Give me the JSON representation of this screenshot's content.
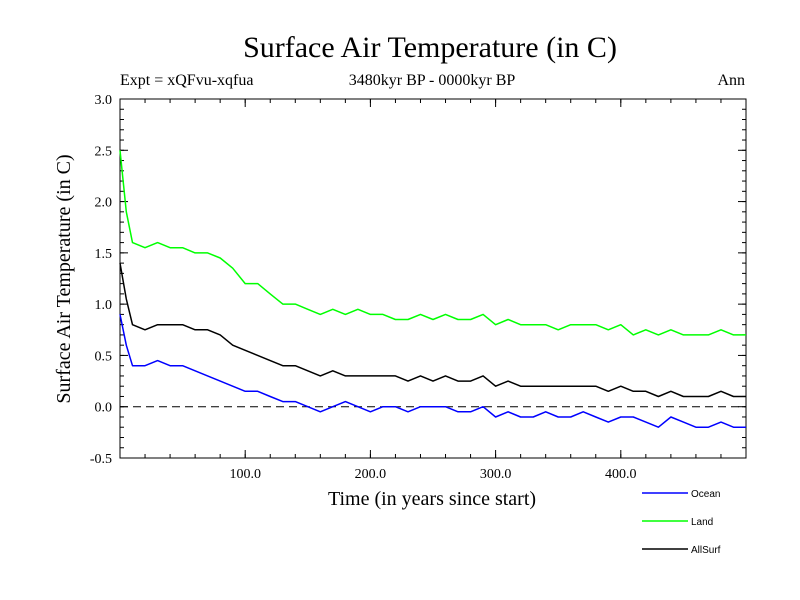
{
  "chart_data": {
    "type": "line",
    "title": "Surface Air Temperature (in C)",
    "subtitle": "3480kyr BP - 0000kyr BP",
    "left_note": "Expt = xQFvu-xqfua",
    "right_note": "Ann",
    "xlabel": "Time (in years since start)",
    "ylabel": "Surface Air Temperature (in C)",
    "xlim": [
      0,
      500
    ],
    "ylim": [
      -0.5,
      3.0
    ],
    "x_ticks": [
      100,
      200,
      300,
      400
    ],
    "x_tick_labels": [
      "100.0",
      "200.0",
      "300.0",
      "400.0"
    ],
    "y_ticks": [
      -0.5,
      0.0,
      0.5,
      1.0,
      1.5,
      2.0,
      2.5,
      3.0
    ],
    "y_tick_labels": [
      "-0.5",
      "0.0",
      "0.5",
      "1.0",
      "1.5",
      "2.0",
      "2.5",
      "3.0"
    ],
    "reference_line": {
      "y": 0.0,
      "style": "dashed"
    },
    "legend_position": "bottom-right, below plot",
    "series": [
      {
        "name": "Ocean",
        "color": "#0000ff",
        "x": [
          0,
          5,
          10,
          20,
          30,
          40,
          50,
          60,
          70,
          80,
          90,
          100,
          110,
          120,
          130,
          140,
          150,
          160,
          170,
          180,
          190,
          200,
          210,
          220,
          230,
          240,
          250,
          260,
          270,
          280,
          290,
          300,
          310,
          320,
          330,
          340,
          350,
          360,
          370,
          380,
          390,
          400,
          410,
          420,
          430,
          440,
          450,
          460,
          470,
          480,
          490,
          500
        ],
        "values": [
          0.9,
          0.6,
          0.4,
          0.4,
          0.45,
          0.4,
          0.4,
          0.35,
          0.3,
          0.25,
          0.2,
          0.15,
          0.15,
          0.1,
          0.05,
          0.05,
          0.0,
          -0.05,
          0.0,
          0.05,
          0.0,
          -0.05,
          0.0,
          0.0,
          -0.05,
          0.0,
          0.0,
          0.0,
          -0.05,
          -0.05,
          0.0,
          -0.1,
          -0.05,
          -0.1,
          -0.1,
          -0.05,
          -0.1,
          -0.1,
          -0.05,
          -0.1,
          -0.15,
          -0.1,
          -0.1,
          -0.15,
          -0.2,
          -0.1,
          -0.15,
          -0.2,
          -0.2,
          -0.15,
          -0.2,
          -0.2
        ]
      },
      {
        "name": "Land",
        "color": "#00ff00",
        "x": [
          0,
          5,
          10,
          20,
          30,
          40,
          50,
          60,
          70,
          80,
          90,
          100,
          110,
          120,
          130,
          140,
          150,
          160,
          170,
          180,
          190,
          200,
          210,
          220,
          230,
          240,
          250,
          260,
          270,
          280,
          290,
          300,
          310,
          320,
          330,
          340,
          350,
          360,
          370,
          380,
          390,
          400,
          410,
          420,
          430,
          440,
          450,
          460,
          470,
          480,
          490,
          500
        ],
        "values": [
          2.5,
          1.9,
          1.6,
          1.55,
          1.6,
          1.55,
          1.55,
          1.5,
          1.5,
          1.45,
          1.35,
          1.2,
          1.2,
          1.1,
          1.0,
          1.0,
          0.95,
          0.9,
          0.95,
          0.9,
          0.95,
          0.9,
          0.9,
          0.85,
          0.85,
          0.9,
          0.85,
          0.9,
          0.85,
          0.85,
          0.9,
          0.8,
          0.85,
          0.8,
          0.8,
          0.8,
          0.75,
          0.8,
          0.8,
          0.8,
          0.75,
          0.8,
          0.7,
          0.75,
          0.7,
          0.75,
          0.7,
          0.7,
          0.7,
          0.75,
          0.7,
          0.7
        ]
      },
      {
        "name": "AllSurf",
        "color": "#000000",
        "x": [
          0,
          5,
          10,
          20,
          30,
          40,
          50,
          60,
          70,
          80,
          90,
          100,
          110,
          120,
          130,
          140,
          150,
          160,
          170,
          180,
          190,
          200,
          210,
          220,
          230,
          240,
          250,
          260,
          270,
          280,
          290,
          300,
          310,
          320,
          330,
          340,
          350,
          360,
          370,
          380,
          390,
          400,
          410,
          420,
          430,
          440,
          450,
          460,
          470,
          480,
          490,
          500
        ],
        "values": [
          1.4,
          1.05,
          0.8,
          0.75,
          0.8,
          0.8,
          0.8,
          0.75,
          0.75,
          0.7,
          0.6,
          0.55,
          0.5,
          0.45,
          0.4,
          0.4,
          0.35,
          0.3,
          0.35,
          0.3,
          0.3,
          0.3,
          0.3,
          0.3,
          0.25,
          0.3,
          0.25,
          0.3,
          0.25,
          0.25,
          0.3,
          0.2,
          0.25,
          0.2,
          0.2,
          0.2,
          0.2,
          0.2,
          0.2,
          0.2,
          0.15,
          0.2,
          0.15,
          0.15,
          0.1,
          0.15,
          0.1,
          0.1,
          0.1,
          0.15,
          0.1,
          0.1
        ]
      }
    ]
  }
}
